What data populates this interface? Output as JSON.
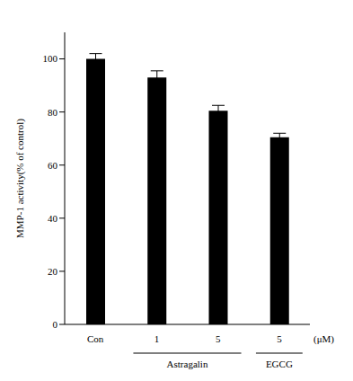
{
  "chart_data": {
    "type": "bar",
    "y_label": "MMP-1 activity(% of control)",
    "x_label": "(μM)",
    "categories": [
      "Con",
      "1",
      "5",
      "5"
    ],
    "group_labels": [
      null,
      "Astragalin",
      "Astragalin",
      "EGCG"
    ],
    "values": [
      100,
      93,
      80.5,
      70.5
    ],
    "errors": [
      2,
      2.5,
      2,
      1.5
    ],
    "color": "#000000",
    "ylim": [
      0,
      110
    ],
    "yticks": [
      0,
      20,
      40,
      60,
      80,
      100
    ],
    "grid": false
  }
}
